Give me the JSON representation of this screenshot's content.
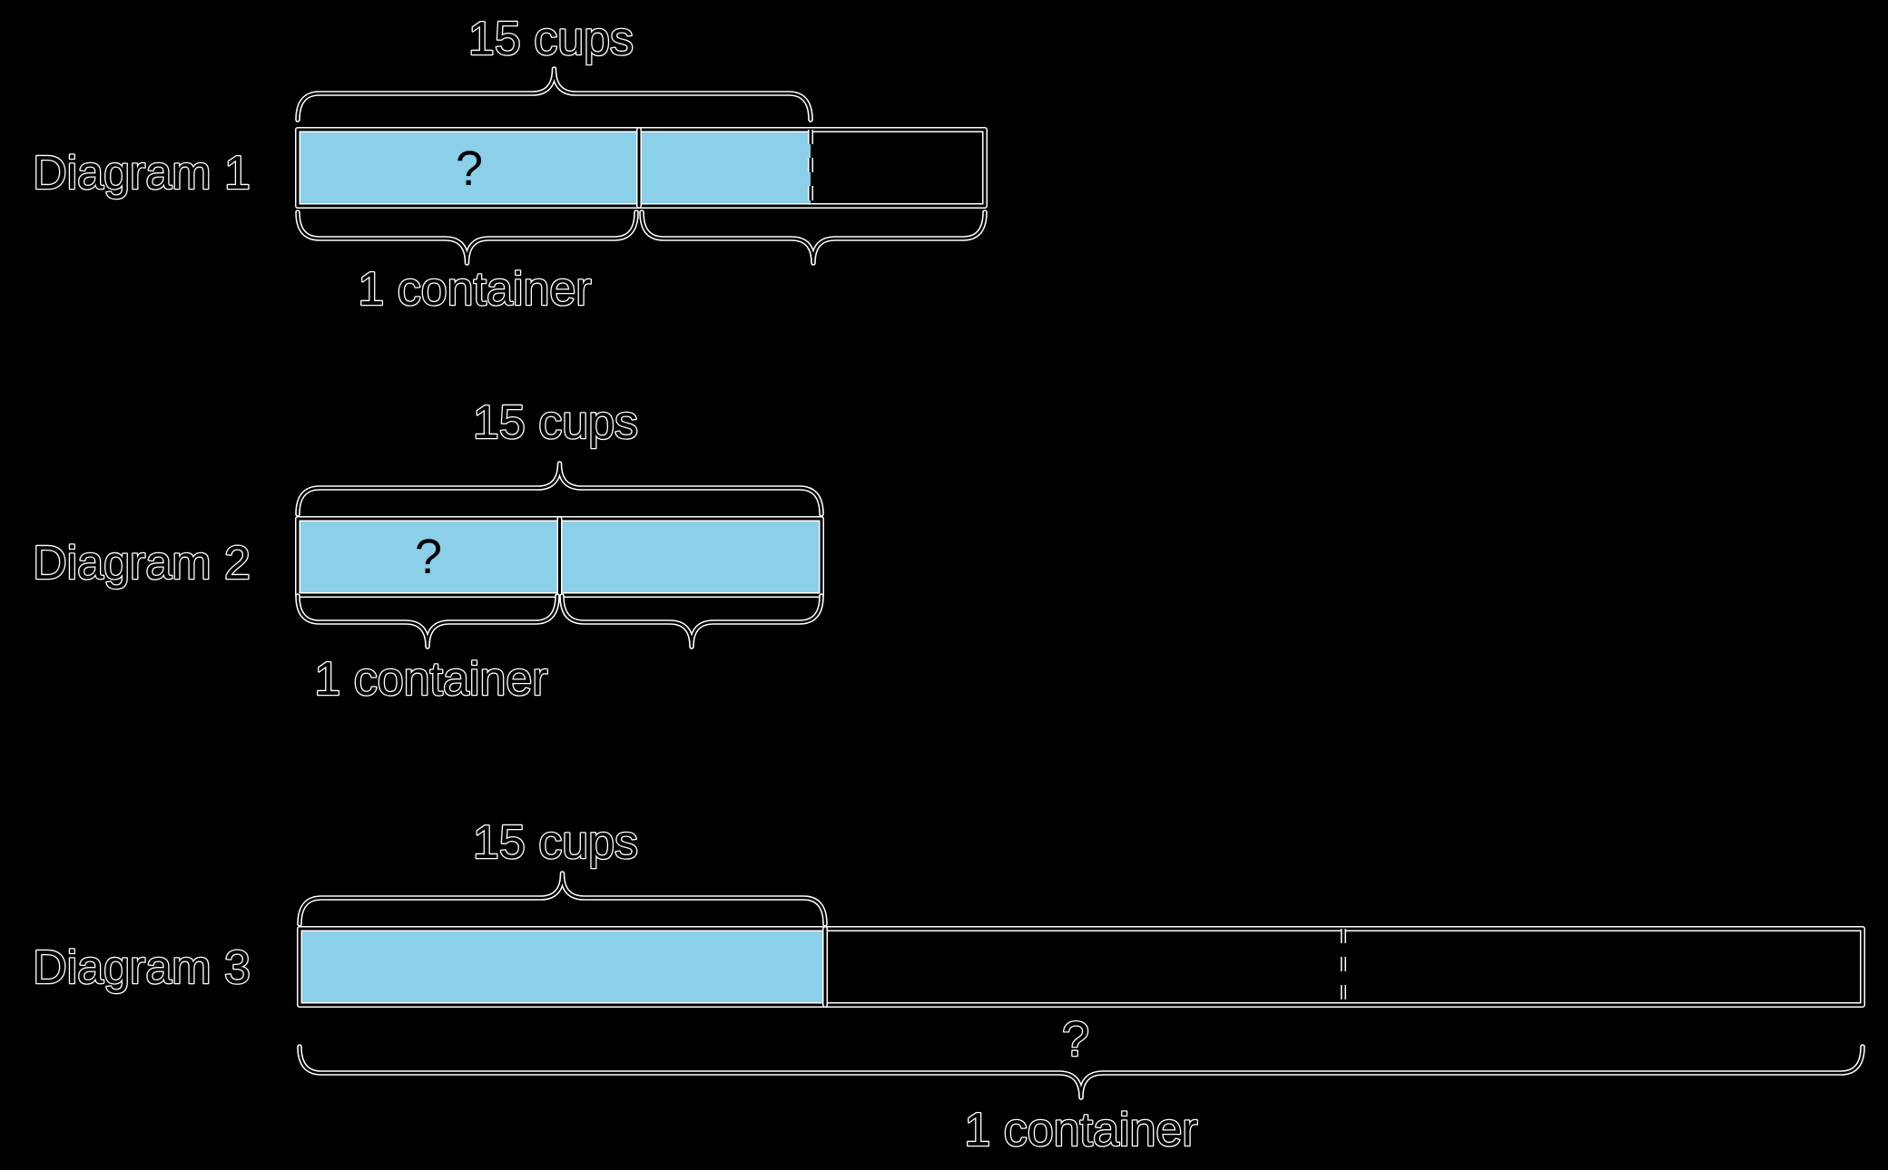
{
  "colors": {
    "background": "#000000",
    "bar_fill": "#8BCFE9",
    "ink": "#000000",
    "halo": "#FFFFFF"
  },
  "diagrams": [
    {
      "label": "Diagram 1",
      "amount_label": "15 cups",
      "question_mark": "?",
      "container_label": "1 container",
      "cells": 2,
      "shaded_cells": 1.5
    },
    {
      "label": "Diagram 2",
      "amount_label": "15 cups",
      "question_mark": "?",
      "container_label": "1 container",
      "cells": 2,
      "shaded_cells": 2
    },
    {
      "label": "Diagram 3",
      "amount_label": "15 cups",
      "question_mark": "?",
      "container_label": "1 container",
      "cells": 3,
      "shaded_cells": 1
    }
  ]
}
